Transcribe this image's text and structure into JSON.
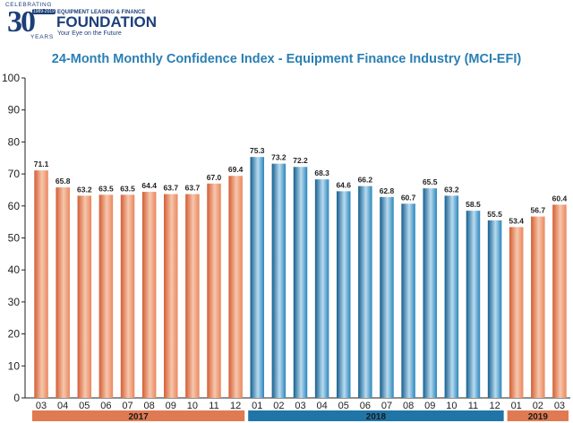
{
  "logo": {
    "celebrating": "CELEBRATING",
    "number": "30",
    "years_range": "1989-2019",
    "years": "YEARS",
    "org": "EQUIPMENT LEASING & FINANCE",
    "name": "FOUNDATION",
    "tagline": "Your Eye on the Future"
  },
  "chart_data": {
    "type": "bar",
    "title": "24-Month Monthly Confidence Index - Equipment Finance Industry (MCI-EFI)",
    "xlabel": "",
    "ylabel": "",
    "ylim": [
      0,
      100
    ],
    "yticks": [
      0,
      10,
      20,
      30,
      40,
      50,
      60,
      70,
      80,
      90,
      100
    ],
    "grid": false,
    "categories": [
      "03",
      "04",
      "05",
      "06",
      "07",
      "08",
      "09",
      "10",
      "11",
      "12",
      "01",
      "02",
      "03",
      "04",
      "05",
      "06",
      "07",
      "08",
      "09",
      "10",
      "11",
      "12",
      "01",
      "02",
      "03"
    ],
    "values": [
      71.1,
      65.8,
      63.2,
      63.5,
      63.5,
      64.4,
      63.7,
      63.7,
      67.0,
      69.4,
      75.3,
      73.2,
      72.2,
      68.3,
      64.6,
      66.2,
      62.8,
      60.7,
      65.5,
      63.2,
      58.5,
      55.5,
      53.4,
      56.7,
      60.4
    ],
    "labels": [
      "71.1",
      "65.8",
      "63.2",
      "63.5",
      "63.5",
      "64.4",
      "63.7",
      "63.7",
      "67.0",
      "69.4",
      "75.3",
      "73.2",
      "72.2",
      "68.3",
      "64.6",
      "66.2",
      "62.8",
      "60.7",
      "65.5",
      "63.2",
      "58.5",
      "55.5",
      "53.4",
      "56.7",
      "60.4"
    ],
    "groups": [
      {
        "name": "2017",
        "start": 0,
        "end": 9,
        "color": "#e07a52"
      },
      {
        "name": "2018",
        "start": 10,
        "end": 21,
        "color": "#1f75a8"
      },
      {
        "name": "2019",
        "start": 22,
        "end": 24,
        "color": "#e07a52"
      }
    ]
  }
}
